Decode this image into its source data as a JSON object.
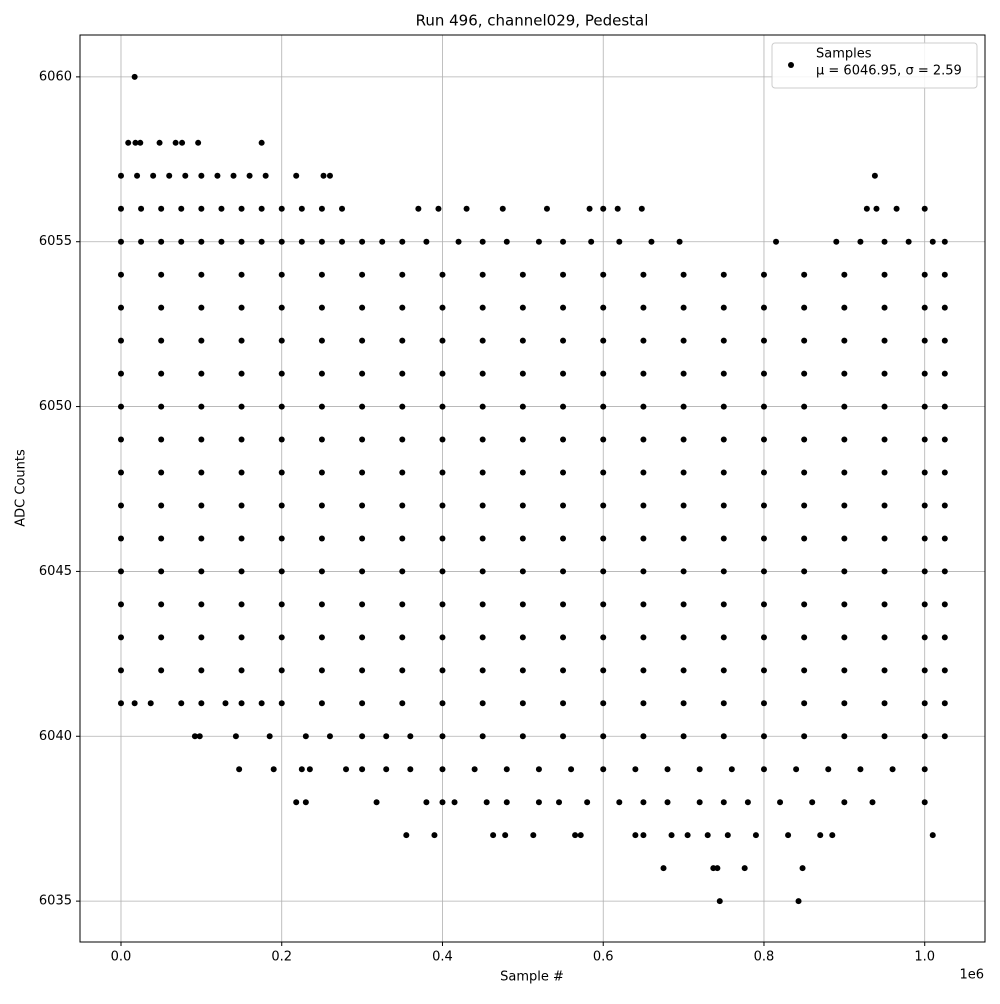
{
  "chart_data": {
    "type": "scatter",
    "title": "Run 496, channel029, Pedestal",
    "xlabel": "Sample #",
    "ylabel": "ADC Counts",
    "x_offset_label": "1e6",
    "legend_note": "μ = 6046.95, σ = 2.59",
    "legend": "upper right",
    "grid": true,
    "xlim": [
      -51000,
      1075000
    ],
    "xticks": [
      {
        "value": 0,
        "label": "0.0"
      },
      {
        "value": 200000,
        "label": "0.2"
      },
      {
        "value": 400000,
        "label": "0.4"
      },
      {
        "value": 600000,
        "label": "0.6"
      },
      {
        "value": 800000,
        "label": "0.8"
      },
      {
        "value": 1000000,
        "label": "1.0"
      }
    ],
    "ylim": [
      6033.76,
      6061.27
    ],
    "yticks": [
      6035,
      6040,
      6045,
      6050,
      6055,
      6060
    ],
    "series": [
      {
        "name": "Samples",
        "color": "#000000",
        "x": [
          17000,
          9000,
          18000,
          24000,
          48000,
          68000,
          76000,
          96000,
          175000,
          0,
          20000,
          40000,
          60000,
          80000,
          100000,
          120000,
          140000,
          160000,
          180000,
          218000,
          252000,
          260000,
          938000,
          0,
          25000,
          50000,
          75000,
          100000,
          125000,
          150000,
          175000,
          200000,
          225000,
          250000,
          275000,
          370000,
          395000,
          430000,
          475000,
          530000,
          583000,
          600000,
          618000,
          648000,
          928000,
          940000,
          965000,
          1000000,
          0,
          25000,
          50000,
          75000,
          100000,
          125000,
          150000,
          175000,
          200000,
          225000,
          250000,
          275000,
          300000,
          325000,
          350000,
          380000,
          420000,
          450000,
          480000,
          520000,
          550000,
          585000,
          620000,
          660000,
          695000,
          815000,
          890000,
          920000,
          950000,
          980000,
          1010000,
          1025000,
          0,
          50000,
          100000,
          150000,
          200000,
          250000,
          300000,
          350000,
          400000,
          450000,
          500000,
          550000,
          600000,
          650000,
          700000,
          750000,
          800000,
          850000,
          900000,
          950000,
          1000000,
          1025000,
          0,
          50000,
          100000,
          150000,
          200000,
          250000,
          300000,
          350000,
          400000,
          450000,
          500000,
          550000,
          600000,
          650000,
          700000,
          750000,
          800000,
          850000,
          900000,
          950000,
          1000000,
          1025000,
          0,
          50000,
          100000,
          150000,
          200000,
          250000,
          300000,
          350000,
          400000,
          450000,
          500000,
          550000,
          600000,
          650000,
          700000,
          750000,
          800000,
          850000,
          900000,
          950000,
          1000000,
          1025000,
          0,
          50000,
          100000,
          150000,
          200000,
          250000,
          300000,
          350000,
          400000,
          450000,
          500000,
          550000,
          600000,
          650000,
          700000,
          750000,
          800000,
          850000,
          900000,
          950000,
          1000000,
          1025000,
          0,
          50000,
          100000,
          150000,
          200000,
          250000,
          300000,
          350000,
          400000,
          450000,
          500000,
          550000,
          600000,
          650000,
          700000,
          750000,
          800000,
          850000,
          900000,
          950000,
          1000000,
          1025000,
          0,
          50000,
          100000,
          150000,
          200000,
          250000,
          300000,
          350000,
          400000,
          450000,
          500000,
          550000,
          600000,
          650000,
          700000,
          750000,
          800000,
          850000,
          900000,
          950000,
          1000000,
          1025000,
          0,
          50000,
          100000,
          150000,
          200000,
          250000,
          300000,
          350000,
          400000,
          450000,
          500000,
          550000,
          600000,
          650000,
          700000,
          750000,
          800000,
          850000,
          900000,
          950000,
          1000000,
          1025000,
          0,
          50000,
          100000,
          150000,
          200000,
          250000,
          300000,
          350000,
          400000,
          450000,
          500000,
          550000,
          600000,
          650000,
          700000,
          750000,
          800000,
          850000,
          900000,
          950000,
          1000000,
          1025000,
          0,
          50000,
          100000,
          150000,
          200000,
          250000,
          300000,
          350000,
          400000,
          450000,
          500000,
          550000,
          600000,
          650000,
          700000,
          750000,
          800000,
          850000,
          900000,
          950000,
          1000000,
          1025000,
          0,
          50000,
          100000,
          150000,
          200000,
          250000,
          300000,
          350000,
          400000,
          450000,
          500000,
          550000,
          600000,
          650000,
          700000,
          750000,
          800000,
          850000,
          900000,
          950000,
          1000000,
          1025000,
          0,
          50000,
          100000,
          150000,
          200000,
          250000,
          300000,
          350000,
          400000,
          450000,
          500000,
          550000,
          600000,
          650000,
          700000,
          750000,
          800000,
          850000,
          900000,
          950000,
          1000000,
          1025000,
          0,
          50000,
          100000,
          150000,
          200000,
          250000,
          300000,
          350000,
          400000,
          450000,
          500000,
          550000,
          600000,
          650000,
          700000,
          750000,
          800000,
          850000,
          900000,
          950000,
          1000000,
          1025000,
          0,
          50000,
          100000,
          150000,
          200000,
          250000,
          300000,
          350000,
          400000,
          450000,
          500000,
          550000,
          600000,
          650000,
          700000,
          750000,
          800000,
          850000,
          900000,
          950000,
          1000000,
          1025000,
          0,
          17000,
          37000,
          75000,
          100000,
          130000,
          150000,
          175000,
          200000,
          250000,
          300000,
          350000,
          400000,
          450000,
          500000,
          550000,
          600000,
          650000,
          700000,
          750000,
          800000,
          850000,
          900000,
          950000,
          1000000,
          1025000,
          92000,
          98000,
          143000,
          185000,
          230000,
          260000,
          300000,
          330000,
          360000,
          400000,
          450000,
          500000,
          550000,
          600000,
          650000,
          700000,
          750000,
          800000,
          850000,
          900000,
          950000,
          1000000,
          1025000,
          147000,
          190000,
          225000,
          235000,
          280000,
          300000,
          330000,
          360000,
          400000,
          440000,
          480000,
          520000,
          560000,
          600000,
          640000,
          680000,
          720000,
          760000,
          800000,
          840000,
          880000,
          920000,
          960000,
          1000000,
          218000,
          230000,
          318000,
          380000,
          400000,
          415000,
          455000,
          480000,
          520000,
          545000,
          580000,
          620000,
          650000,
          680000,
          720000,
          750000,
          780000,
          820000,
          860000,
          900000,
          935000,
          1000000,
          355000,
          390000,
          463000,
          478000,
          513000,
          565000,
          572000,
          640000,
          650000,
          685000,
          705000,
          730000,
          755000,
          790000,
          830000,
          870000,
          885000,
          1010000,
          675000,
          737000,
          742000,
          776000,
          848000,
          745000,
          843000
        ],
        "values": [
          6060,
          6058,
          6058,
          6058,
          6058,
          6058,
          6058,
          6058,
          6058,
          6057,
          6057,
          6057,
          6057,
          6057,
          6057,
          6057,
          6057,
          6057,
          6057,
          6057,
          6057,
          6057,
          6057,
          6056,
          6056,
          6056,
          6056,
          6056,
          6056,
          6056,
          6056,
          6056,
          6056,
          6056,
          6056,
          6056,
          6056,
          6056,
          6056,
          6056,
          6056,
          6056,
          6056,
          6056,
          6056,
          6056,
          6056,
          6056,
          6055,
          6055,
          6055,
          6055,
          6055,
          6055,
          6055,
          6055,
          6055,
          6055,
          6055,
          6055,
          6055,
          6055,
          6055,
          6055,
          6055,
          6055,
          6055,
          6055,
          6055,
          6055,
          6055,
          6055,
          6055,
          6055,
          6055,
          6055,
          6055,
          6055,
          6055,
          6055,
          6054,
          6054,
          6054,
          6054,
          6054,
          6054,
          6054,
          6054,
          6054,
          6054,
          6054,
          6054,
          6054,
          6054,
          6054,
          6054,
          6054,
          6054,
          6054,
          6054,
          6054,
          6054,
          6053,
          6053,
          6053,
          6053,
          6053,
          6053,
          6053,
          6053,
          6053,
          6053,
          6053,
          6053,
          6053,
          6053,
          6053,
          6053,
          6053,
          6053,
          6053,
          6053,
          6053,
          6053,
          6052,
          6052,
          6052,
          6052,
          6052,
          6052,
          6052,
          6052,
          6052,
          6052,
          6052,
          6052,
          6052,
          6052,
          6052,
          6052,
          6052,
          6052,
          6052,
          6052,
          6052,
          6052,
          6051,
          6051,
          6051,
          6051,
          6051,
          6051,
          6051,
          6051,
          6051,
          6051,
          6051,
          6051,
          6051,
          6051,
          6051,
          6051,
          6051,
          6051,
          6051,
          6051,
          6051,
          6051,
          6050,
          6050,
          6050,
          6050,
          6050,
          6050,
          6050,
          6050,
          6050,
          6050,
          6050,
          6050,
          6050,
          6050,
          6050,
          6050,
          6050,
          6050,
          6050,
          6050,
          6050,
          6050,
          6049,
          6049,
          6049,
          6049,
          6049,
          6049,
          6049,
          6049,
          6049,
          6049,
          6049,
          6049,
          6049,
          6049,
          6049,
          6049,
          6049,
          6049,
          6049,
          6049,
          6049,
          6049,
          6048,
          6048,
          6048,
          6048,
          6048,
          6048,
          6048,
          6048,
          6048,
          6048,
          6048,
          6048,
          6048,
          6048,
          6048,
          6048,
          6048,
          6048,
          6048,
          6048,
          6048,
          6048,
          6047,
          6047,
          6047,
          6047,
          6047,
          6047,
          6047,
          6047,
          6047,
          6047,
          6047,
          6047,
          6047,
          6047,
          6047,
          6047,
          6047,
          6047,
          6047,
          6047,
          6047,
          6047,
          6046,
          6046,
          6046,
          6046,
          6046,
          6046,
          6046,
          6046,
          6046,
          6046,
          6046,
          6046,
          6046,
          6046,
          6046,
          6046,
          6046,
          6046,
          6046,
          6046,
          6046,
          6046,
          6045,
          6045,
          6045,
          6045,
          6045,
          6045,
          6045,
          6045,
          6045,
          6045,
          6045,
          6045,
          6045,
          6045,
          6045,
          6045,
          6045,
          6045,
          6045,
          6045,
          6045,
          6045,
          6044,
          6044,
          6044,
          6044,
          6044,
          6044,
          6044,
          6044,
          6044,
          6044,
          6044,
          6044,
          6044,
          6044,
          6044,
          6044,
          6044,
          6044,
          6044,
          6044,
          6044,
          6044,
          6043,
          6043,
          6043,
          6043,
          6043,
          6043,
          6043,
          6043,
          6043,
          6043,
          6043,
          6043,
          6043,
          6043,
          6043,
          6043,
          6043,
          6043,
          6043,
          6043,
          6043,
          6043,
          6042,
          6042,
          6042,
          6042,
          6042,
          6042,
          6042,
          6042,
          6042,
          6042,
          6042,
          6042,
          6042,
          6042,
          6042,
          6042,
          6042,
          6042,
          6042,
          6042,
          6042,
          6042,
          6041,
          6041,
          6041,
          6041,
          6041,
          6041,
          6041,
          6041,
          6041,
          6041,
          6041,
          6041,
          6041,
          6041,
          6041,
          6041,
          6041,
          6041,
          6041,
          6041,
          6041,
          6041,
          6041,
          6041,
          6041,
          6041,
          6040,
          6040,
          6040,
          6040,
          6040,
          6040,
          6040,
          6040,
          6040,
          6040,
          6040,
          6040,
          6040,
          6040,
          6040,
          6040,
          6040,
          6040,
          6040,
          6040,
          6040,
          6040,
          6040,
          6039,
          6039,
          6039,
          6039,
          6039,
          6039,
          6039,
          6039,
          6039,
          6039,
          6039,
          6039,
          6039,
          6039,
          6039,
          6039,
          6039,
          6039,
          6039,
          6039,
          6039,
          6039,
          6039,
          6039,
          6038,
          6038,
          6038,
          6038,
          6038,
          6038,
          6038,
          6038,
          6038,
          6038,
          6038,
          6038,
          6038,
          6038,
          6038,
          6038,
          6038,
          6038,
          6038,
          6038,
          6038,
          6038,
          6037,
          6037,
          6037,
          6037,
          6037,
          6037,
          6037,
          6037,
          6037,
          6037,
          6037,
          6037,
          6037,
          6037,
          6037,
          6037,
          6037,
          6037,
          6036,
          6036,
          6036,
          6036,
          6036,
          6035,
          6035
        ]
      }
    ]
  }
}
